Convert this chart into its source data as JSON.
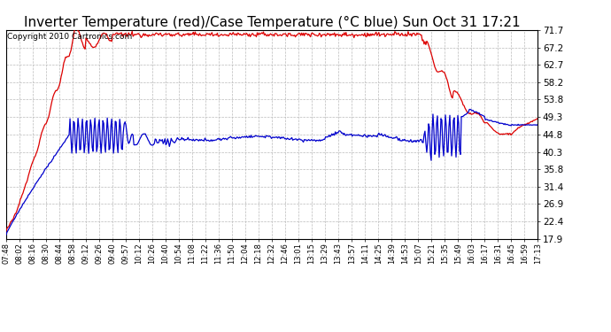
{
  "title": "Inverter Temperature (red)/Case Temperature (°C blue) Sun Oct 31 17:21",
  "copyright": "Copyright 2010 Cartronics.com",
  "ylim": [
    17.9,
    71.7
  ],
  "yticks": [
    17.9,
    22.4,
    26.9,
    31.4,
    35.8,
    40.3,
    44.8,
    49.3,
    53.8,
    58.2,
    62.7,
    67.2,
    71.7
  ],
  "xlabel_times": [
    "07:48",
    "08:02",
    "08:16",
    "08:30",
    "08:44",
    "08:58",
    "09:12",
    "09:26",
    "09:40",
    "09:57",
    "10:12",
    "10:26",
    "10:40",
    "10:54",
    "11:08",
    "11:22",
    "11:36",
    "11:50",
    "12:04",
    "12:18",
    "12:32",
    "12:46",
    "13:01",
    "13:15",
    "13:29",
    "13:43",
    "13:57",
    "14:11",
    "14:25",
    "14:39",
    "14:53",
    "15:07",
    "15:21",
    "15:35",
    "15:49",
    "16:03",
    "16:17",
    "16:31",
    "16:45",
    "16:59",
    "17:13"
  ],
  "red_color": "#dd0000",
  "blue_color": "#0000cc",
  "bg_color": "#ffffff",
  "grid_color": "#bbbbbb",
  "title_fontsize": 11,
  "copyright_fontsize": 6.5,
  "n_points": 600
}
